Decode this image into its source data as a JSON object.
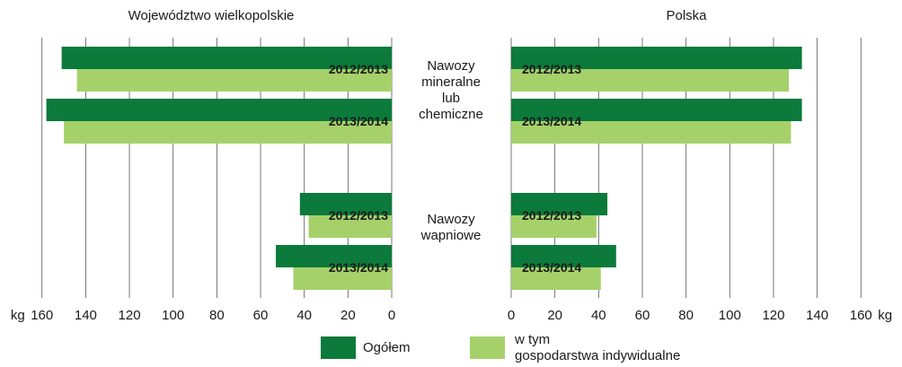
{
  "chart_data": {
    "type": "bar",
    "orientation": "horizontal-mirrored",
    "panels": [
      {
        "title": "Województwo wielkopolskie",
        "direction": "left"
      },
      {
        "title": "Polska",
        "direction": "right"
      }
    ],
    "groups": [
      {
        "label_lines": [
          "Nawozy",
          "mineralne",
          "lub",
          "chemiczne"
        ]
      },
      {
        "label_lines": [
          "Nawozy",
          "wapniowe"
        ]
      }
    ],
    "periods": [
      "2012/2013",
      "2013/2014"
    ],
    "series": [
      {
        "name": "Ogółem",
        "color": "#0b7a3b",
        "wielkopolskie": [
          [
            151,
            158
          ],
          [
            42,
            53
          ]
        ],
        "polska": [
          [
            133,
            133
          ],
          [
            44,
            48
          ]
        ]
      },
      {
        "name": "w tym gospodarstwa indywidualne",
        "color": "#a6d16a",
        "wielkopolskie": [
          [
            144,
            150
          ],
          [
            38,
            45
          ]
        ],
        "polska": [
          [
            127,
            128
          ],
          [
            39,
            41
          ]
        ]
      }
    ],
    "legend": {
      "position": "bottom",
      "items": [
        {
          "lines": [
            "Ogółem"
          ]
        },
        {
          "lines": [
            "w tym",
            "gospodarstwa indywidualne"
          ]
        }
      ]
    },
    "axis": {
      "unit": "kg",
      "ticks": [
        0,
        20,
        40,
        60,
        80,
        100,
        120,
        140,
        160
      ],
      "range": [
        0,
        160
      ],
      "grid": true
    }
  }
}
